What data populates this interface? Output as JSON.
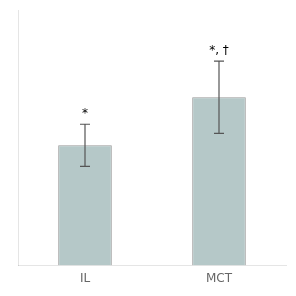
{
  "chart_data": {
    "type": "bar",
    "categories": [
      "IL",
      "MCT"
    ],
    "values": [
      0.4,
      0.56
    ],
    "errors": [
      0.07,
      0.12
    ],
    "annotations": [
      "*",
      "*, †"
    ],
    "color": "#b5c8c8",
    "ylim": [
      0,
      0.85
    ],
    "yticks": [],
    "tick_labels": "x",
    "grid": false
  }
}
